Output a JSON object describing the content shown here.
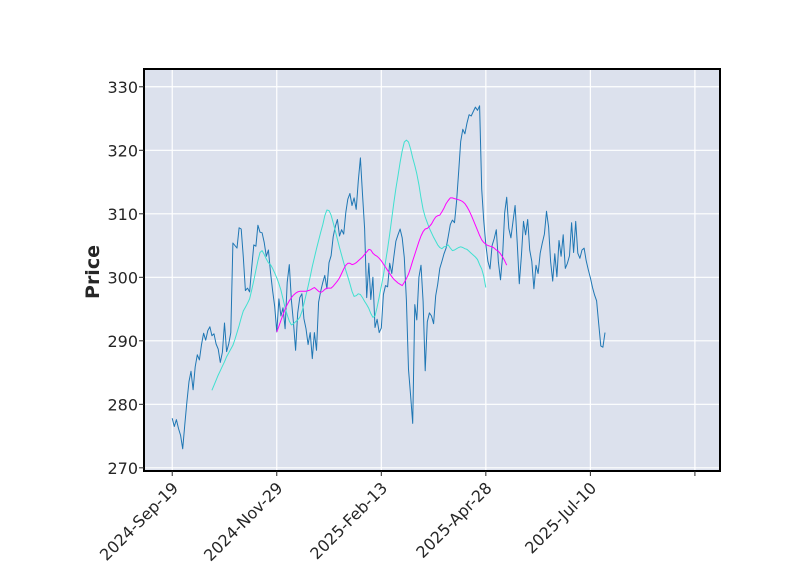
{
  "chart_data": {
    "type": "line",
    "title": "",
    "xlabel": "",
    "ylabel": "Price",
    "ylim": [
      269.5,
      332.8
    ],
    "grid": true,
    "legend": "none",
    "background": "#dce1ed",
    "yticks": [
      270,
      280,
      290,
      300,
      310,
      320,
      330
    ],
    "ytick_labels": [
      "270",
      "280",
      "290",
      "300",
      "310",
      "320",
      "330"
    ],
    "xticks": [
      {
        "label": "2024-Sep-19",
        "index": 0
      },
      {
        "label": "2024-Nov-29",
        "index": 50
      },
      {
        "label": "2025-Feb-13",
        "index": 100
      },
      {
        "label": "2025-Apr-28",
        "index": 150
      },
      {
        "label": "2025-Jul-10",
        "index": 200
      },
      {
        "label": "",
        "index": 250
      }
    ],
    "x_index_range": [
      -13.5,
      262
    ],
    "series": [
      {
        "name": "Close",
        "color": "#1f77b4",
        "width": 1,
        "start_index": 0,
        "values": [
          277.8,
          276.5,
          277.6,
          276.2,
          275.1,
          273.0,
          276.8,
          280.4,
          283.6,
          285.2,
          282.3,
          285.9,
          287.8,
          287.0,
          289.4,
          291.2,
          290.1,
          291.6,
          292.2,
          290.8,
          291.1,
          289.5,
          288.7,
          286.6,
          288.2,
          292.8,
          288.3,
          289.5,
          291.3,
          305.4,
          305.0,
          304.6,
          307.8,
          307.6,
          303.2,
          297.9,
          298.3,
          297.7,
          301.5,
          305.1,
          304.9,
          308.2,
          307.1,
          307.0,
          305.5,
          303.3,
          304.3,
          300.8,
          297.9,
          295.4,
          291.4,
          296.6,
          293.9,
          295.2,
          291.9,
          299.2,
          302.0,
          296.4,
          292.8,
          288.5,
          294.4,
          296.8,
          297.4,
          293.5,
          291.9,
          289.4,
          291.3,
          287.2,
          291.3,
          288.5,
          296.1,
          297.8,
          299.2,
          300.3,
          298.2,
          302.3,
          303.4,
          306.4,
          308.0,
          309.1,
          306.5,
          307.5,
          306.8,
          310.2,
          312.3,
          313.2,
          311.3,
          312.5,
          310.7,
          315.2,
          318.8,
          313.1,
          307.7,
          296.8,
          302.2,
          296.5,
          300.0,
          292.1,
          293.4,
          291.3,
          292.0,
          297.3,
          298.7,
          298.5,
          302.2,
          300.6,
          303.2,
          305.7,
          306.7,
          307.6,
          306.2,
          303.1,
          296.4,
          285.5,
          281.4,
          277.0,
          295.7,
          293.3,
          300.0,
          301.9,
          296.2,
          285.3,
          293.0,
          294.4,
          293.9,
          292.7,
          297.1,
          298.9,
          301.4,
          302.5,
          303.7,
          304.6,
          306.4,
          308.3,
          309.0,
          308.6,
          312.0,
          316.7,
          321.4,
          323.3,
          322.6,
          324.3,
          325.6,
          325.4,
          326.1,
          326.8,
          326.3,
          327.0,
          313.9,
          309.0,
          305.2,
          302.5,
          301.3,
          305.0,
          306.1,
          307.5,
          302.4,
          299.6,
          303.4,
          310.2,
          312.6,
          307.7,
          306.2,
          308.8,
          311.3,
          305.5,
          299.0,
          303.4,
          308.8,
          306.7,
          309.1,
          304.3,
          302.5,
          298.2,
          301.9,
          300.6,
          303.8,
          305.4,
          306.8,
          310.4,
          307.9,
          302.5,
          299.4,
          303.7,
          300.1,
          305.8,
          303.3,
          306.7,
          301.4,
          302.2,
          303.4,
          308.6,
          303.9,
          308.8,
          303.8,
          303.0,
          304.3,
          304.6,
          302.6,
          301.2,
          299.9,
          298.4,
          297.2,
          296.3,
          292.7,
          289.2,
          289.0,
          291.3
        ]
      },
      {
        "name": "MA20",
        "color": "#40e0d0",
        "width": 1,
        "start_index": 19,
        "values": [
          282.2,
          283.0,
          283.8,
          284.6,
          285.3,
          286.0,
          286.7,
          287.5,
          288.1,
          288.7,
          289.3,
          290.2,
          291.3,
          292.4,
          293.6,
          294.7,
          295.3,
          295.9,
          296.6,
          298.0,
          299.5,
          301.1,
          302.6,
          303.9,
          304.2,
          303.6,
          302.9,
          302.3,
          302.0,
          301.4,
          300.7,
          299.9,
          299.0,
          298.0,
          296.6,
          295.2,
          294.1,
          293.1,
          292.5,
          292.7,
          293.0,
          293.3,
          293.7,
          294.6,
          295.8,
          297.2,
          298.6,
          300.1,
          301.7,
          303.1,
          304.5,
          305.8,
          307.1,
          308.3,
          309.7,
          310.6,
          310.5,
          309.8,
          308.6,
          307.3,
          306.0,
          304.7,
          303.5,
          302.3,
          301.1,
          300.1,
          299.0,
          297.8,
          297.0,
          297.1,
          297.4,
          297.3,
          296.8,
          296.2,
          295.7,
          295.1,
          294.3,
          293.7,
          293.9,
          295.3,
          296.9,
          298.6,
          300.3,
          302.4,
          304.5,
          306.8,
          309.3,
          311.7,
          314.0,
          316.0,
          318.1,
          319.9,
          321.3,
          321.6,
          321.3,
          320.2,
          318.8,
          317.6,
          316.3,
          314.6,
          312.5,
          310.7,
          309.5,
          308.6,
          307.7,
          307.0,
          306.3,
          305.7,
          305.1,
          304.7,
          304.5,
          304.8,
          304.9,
          305.1,
          304.6,
          304.2,
          304.3,
          304.5,
          304.7,
          304.8,
          304.7,
          304.5,
          304.4,
          304.1,
          303.8,
          303.5,
          303.2,
          302.8,
          302.0,
          301.3,
          300.2,
          298.4
        ]
      },
      {
        "name": "MA50",
        "color": "#ff00ff",
        "width": 1,
        "start_index": 50,
        "values": [
          291.4,
          292.3,
          293.2,
          294.1,
          295.0,
          295.7,
          296.3,
          296.8,
          297.2,
          297.5,
          297.7,
          297.8,
          297.8,
          297.8,
          297.8,
          297.9,
          298.0,
          298.2,
          298.4,
          298.1,
          297.8,
          297.6,
          297.8,
          298.1,
          298.3,
          298.3,
          298.3,
          298.6,
          299.0,
          299.4,
          299.9,
          300.6,
          301.3,
          301.9,
          302.2,
          302.2,
          302.0,
          302.1,
          302.3,
          302.6,
          302.9,
          303.2,
          303.6,
          304.0,
          304.4,
          304.3,
          303.8,
          303.5,
          303.3,
          303.0,
          302.6,
          302.1,
          301.6,
          301.1,
          300.6,
          300.1,
          299.7,
          299.4,
          299.1,
          298.9,
          298.7,
          299.2,
          299.8,
          300.5,
          301.5,
          302.6,
          303.6,
          304.6,
          305.6,
          306.5,
          307.2,
          307.6,
          307.7,
          308.0,
          308.4,
          309.0,
          309.5,
          309.7,
          309.8,
          310.3,
          310.9,
          311.6,
          312.1,
          312.5,
          312.5,
          312.4,
          312.3,
          312.2,
          312.1,
          311.9,
          311.6,
          311.1,
          310.5,
          309.8,
          309.0,
          308.2,
          307.4,
          306.6,
          305.9,
          305.5,
          305.2,
          305.0,
          304.9,
          304.8,
          304.6,
          304.3,
          304.1,
          303.7,
          303.2,
          302.6,
          301.9
        ]
      }
    ]
  }
}
